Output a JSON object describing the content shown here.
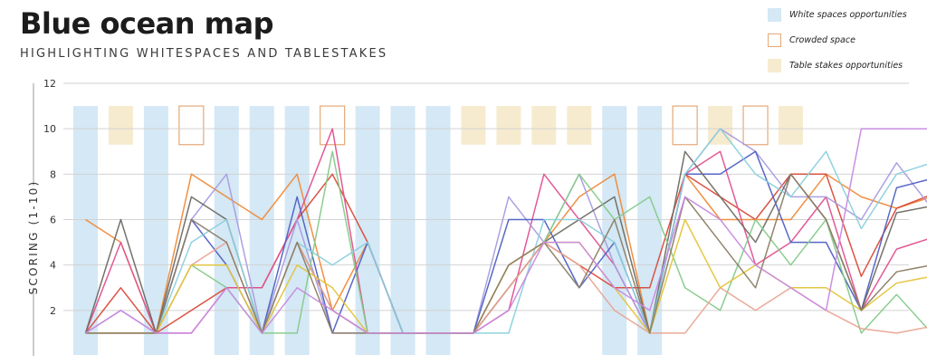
{
  "header": {
    "title": "Blue ocean map",
    "subtitle": "HIGHLIGHTING WHITESPACES AND TABLESTAKES"
  },
  "legend": {
    "items": [
      {
        "label": "White spaces opportunities",
        "fill": "#d4e8f5",
        "stroke": "none"
      },
      {
        "label": "Crowded space",
        "fill": "none",
        "stroke": "#e6a877"
      },
      {
        "label": "Table stakes opportunities",
        "fill": "#f6ebcf",
        "stroke": "none"
      }
    ]
  },
  "colors": {
    "whitespace": "#d4e8f5",
    "crowded": "#e6a877",
    "tablestakes": "#f6ebcf",
    "grid": "#d2d2d2",
    "text": "#333333"
  },
  "chart_data": {
    "type": "line",
    "ylabel": "SCORING (1-10)",
    "ylim": [
      0,
      12
    ],
    "yticks": [
      2,
      4,
      6,
      8,
      10,
      12
    ],
    "x": [
      1,
      2,
      3,
      4,
      5,
      6,
      7,
      8,
      9,
      10,
      11,
      12,
      13,
      14,
      15,
      16,
      17,
      18,
      19,
      20,
      21,
      22,
      23,
      24,
      25
    ],
    "grid": true,
    "legend_position": "top-right",
    "highlight_bands": [
      {
        "x": 1,
        "kind": "whitespace"
      },
      {
        "x": 2,
        "kind": "tablestakes"
      },
      {
        "x": 3,
        "kind": "whitespace"
      },
      {
        "x": 4,
        "kind": "crowded"
      },
      {
        "x": 5,
        "kind": "whitespace"
      },
      {
        "x": 6,
        "kind": "whitespace"
      },
      {
        "x": 7,
        "kind": "whitespace"
      },
      {
        "x": 8,
        "kind": "crowded"
      },
      {
        "x": 9,
        "kind": "whitespace"
      },
      {
        "x": 10,
        "kind": "whitespace"
      },
      {
        "x": 11,
        "kind": "whitespace"
      },
      {
        "x": 12,
        "kind": "tablestakes"
      },
      {
        "x": 13,
        "kind": "tablestakes"
      },
      {
        "x": 14,
        "kind": "tablestakes"
      },
      {
        "x": 15,
        "kind": "tablestakes"
      },
      {
        "x": 16,
        "kind": "whitespace"
      },
      {
        "x": 17,
        "kind": "whitespace"
      },
      {
        "x": 18,
        "kind": "crowded"
      },
      {
        "x": 19,
        "kind": "tablestakes"
      },
      {
        "x": 20,
        "kind": "crowded"
      },
      {
        "x": 21,
        "kind": "tablestakes"
      }
    ],
    "series": [
      {
        "color": "#ef8a3a",
        "values": [
          6,
          5,
          1,
          8,
          7,
          6,
          8,
          2,
          5,
          1,
          1,
          1,
          4,
          5,
          7,
          8,
          1,
          8,
          6,
          6,
          6,
          8,
          7,
          6.5,
          7
        ]
      },
      {
        "color": "#d94a3a",
        "values": [
          1,
          3,
          1,
          2,
          3,
          3,
          6,
          8,
          5,
          1,
          1,
          1,
          3,
          5,
          4,
          3,
          3,
          8,
          7,
          6,
          8,
          8,
          3.5,
          6.5,
          7.1
        ]
      },
      {
        "color": "#e2508f",
        "values": [
          1,
          5,
          1,
          1,
          3,
          3,
          6,
          10,
          1,
          1,
          1,
          1,
          2,
          8,
          6,
          4,
          1,
          8,
          9,
          4,
          5,
          7,
          2,
          4.7,
          5.2
        ]
      },
      {
        "color": "#a89ce0",
        "values": [
          1,
          2,
          1,
          6,
          8,
          1,
          6,
          1,
          1,
          1,
          1,
          1,
          7,
          5,
          8,
          4,
          1,
          8,
          10,
          9,
          7,
          7,
          6,
          8.5,
          6.5
        ]
      },
      {
        "color": "#4f60c4",
        "values": [
          1,
          1,
          1,
          6,
          4,
          1,
          7,
          1,
          5,
          1,
          1,
          1,
          6,
          6,
          3,
          5,
          1,
          8,
          8,
          9,
          5,
          5,
          2,
          7.4,
          7.8
        ]
      },
      {
        "color": "#6e6a63",
        "values": [
          1,
          6,
          1,
          7,
          6,
          1,
          5,
          2,
          1,
          1,
          1,
          1,
          3,
          5,
          6,
          7,
          1,
          9,
          7,
          5,
          8,
          6,
          2,
          6.3,
          6.6
        ]
      },
      {
        "color": "#86ca8a",
        "values": [
          1,
          1,
          1,
          4,
          3,
          1,
          1,
          9,
          1,
          1,
          1,
          1,
          4,
          5,
          8,
          6,
          7,
          3,
          2,
          6,
          4,
          6,
          1,
          2.7,
          1
        ]
      },
      {
        "color": "#8ad0dd",
        "values": [
          1,
          1,
          1,
          5,
          6,
          1,
          5,
          4,
          5,
          1,
          1,
          1,
          1,
          6,
          6,
          5,
          1,
          8,
          10,
          8,
          7,
          9,
          5.6,
          8,
          8.5
        ]
      },
      {
        "color": "#e9a493",
        "values": [
          1,
          1,
          1,
          4,
          5,
          1,
          5,
          2,
          1,
          1,
          1,
          1,
          3,
          5,
          4,
          2,
          1,
          1,
          3,
          2,
          3,
          2,
          1.2,
          1,
          1.3
        ]
      },
      {
        "color": "#e4c43a",
        "values": [
          1,
          1,
          1,
          4,
          4,
          1,
          4,
          3,
          1,
          1,
          1,
          1,
          4,
          5,
          5,
          3,
          1,
          6,
          3,
          4,
          3,
          3,
          2,
          3.2,
          3.5
        ]
      },
      {
        "color": "#8b7d66",
        "values": [
          1,
          1,
          1,
          6,
          5,
          1,
          5,
          1,
          1,
          1,
          1,
          1,
          4,
          5,
          3,
          6,
          1,
          7,
          5,
          3,
          8,
          6,
          2,
          3.7,
          4
        ]
      },
      {
        "color": "#c889e0",
        "values": [
          1,
          2,
          1,
          1,
          3,
          1,
          3,
          2,
          1,
          1,
          1,
          1,
          2,
          5,
          5,
          3,
          2,
          7,
          6,
          4,
          3,
          2,
          10,
          10,
          10
        ]
      }
    ]
  }
}
